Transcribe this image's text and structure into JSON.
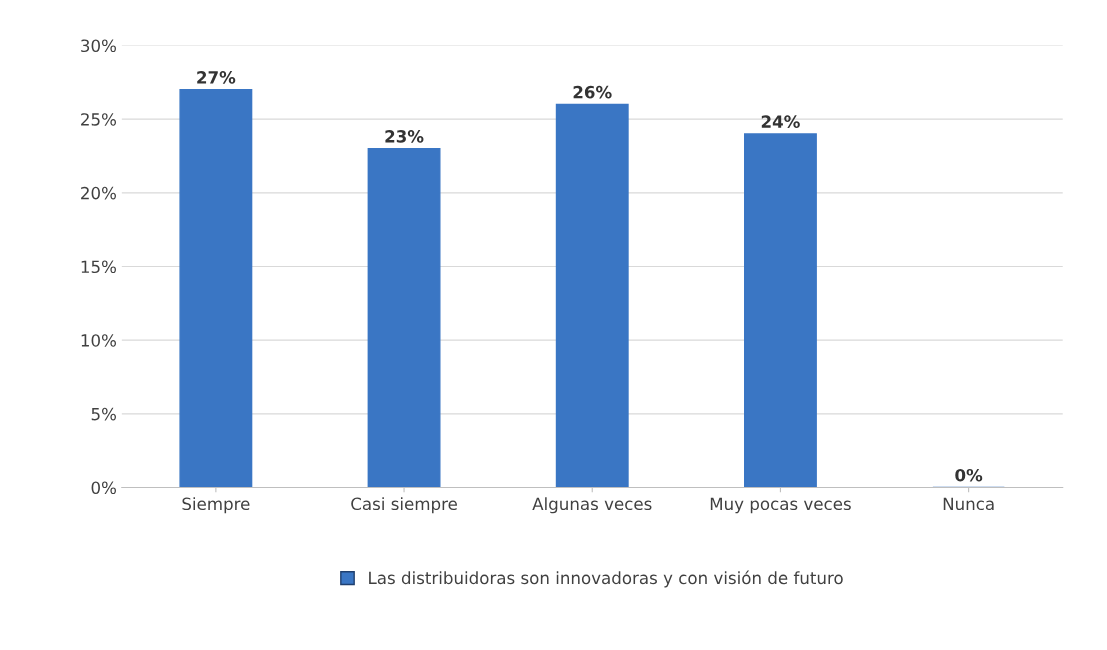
{
  "chart_data": {
    "type": "bar",
    "categories": [
      "Siempre",
      "Casi siempre",
      "Algunas veces",
      "Muy pocas veces",
      "Nunca"
    ],
    "series": [
      {
        "name": "Las distribuidoras son innovadoras y con visión de futuro",
        "color": "#3a76c4",
        "values": [
          27,
          23,
          26,
          24,
          0
        ],
        "value_labels": [
          "27%",
          "23%",
          "26%",
          "24%",
          "0%"
        ]
      }
    ],
    "ylim": [
      0,
      30
    ],
    "yticks": [
      {
        "value": 0,
        "label": "0%"
      },
      {
        "value": 5,
        "label": "5%"
      },
      {
        "value": 10,
        "label": "10%"
      },
      {
        "value": 15,
        "label": "15%"
      },
      {
        "value": 20,
        "label": "20%"
      },
      {
        "value": 25,
        "label": "25%"
      },
      {
        "value": 30,
        "label": "30%"
      }
    ],
    "grid": "y",
    "legend": "bottom"
  }
}
